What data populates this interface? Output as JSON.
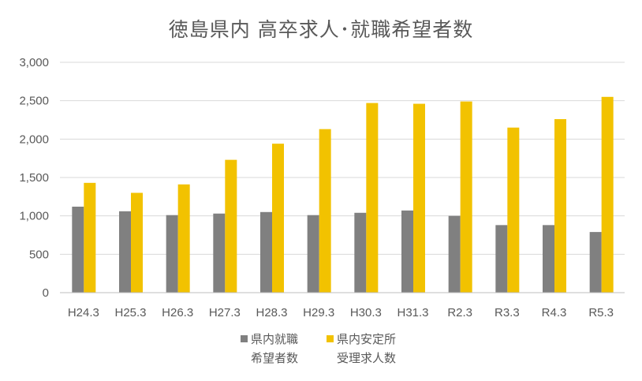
{
  "chart_data": {
    "type": "bar",
    "title": "徳島県内 高卒求人･就職希望者数",
    "xlabel": "",
    "ylabel": "",
    "categories": [
      "H24.3",
      "H25.3",
      "H26.3",
      "H27.3",
      "H28.3",
      "H29.3",
      "H30.3",
      "H31.3",
      "R2.3",
      "R3.3",
      "R4.3",
      "R5.3"
    ],
    "ylim": [
      0,
      3000
    ],
    "yticks": [
      0,
      500,
      1000,
      1500,
      2000,
      2500,
      3000
    ],
    "ytick_labels": [
      "0",
      "500",
      "1,000",
      "1,500",
      "2,000",
      "2,500",
      "3,000"
    ],
    "grid": true,
    "legend_position": "bottom",
    "series": [
      {
        "name": "県内就職希望者数",
        "legend_lines": [
          "県内就職",
          "希望者数"
        ],
        "color": "#808080",
        "values": [
          1120,
          1060,
          1010,
          1030,
          1050,
          1010,
          1040,
          1070,
          1000,
          880,
          880,
          790
        ]
      },
      {
        "name": "県内安定所受理求人数",
        "legend_lines": [
          "県内安定所",
          "受理求人数"
        ],
        "color": "#f2c200",
        "values": [
          1430,
          1300,
          1410,
          1730,
          1940,
          2130,
          2470,
          2460,
          2490,
          2150,
          2260,
          2550
        ]
      }
    ]
  }
}
